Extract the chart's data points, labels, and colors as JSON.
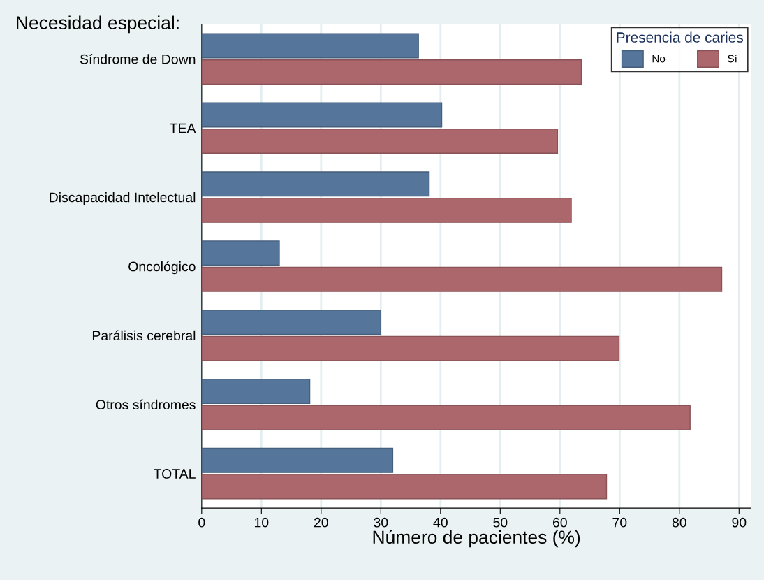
{
  "chart_data": {
    "type": "bar",
    "orientation": "horizontal",
    "ylabel": "Necesidad especial:",
    "xlabel": "Número de pacientes (%)",
    "legend_title": "Presencia de caries",
    "categories": [
      "Síndrome de Down",
      "TEA",
      "Discapacidad Intelectual",
      "Oncológico",
      "Parálisis cerebral",
      "Otros síndromes",
      "TOTAL"
    ],
    "series": [
      {
        "name": "No",
        "color": "#55759a",
        "values": [
          36.3,
          40.2,
          38.1,
          13.0,
          30.0,
          18.1,
          32.0
        ]
      },
      {
        "name": "Sí",
        "color": "#ab676b",
        "values": [
          63.6,
          59.6,
          61.9,
          87.1,
          69.9,
          81.8,
          67.8
        ]
      }
    ],
    "xlim": [
      0,
      92
    ],
    "xticks": [
      0,
      10,
      20,
      30,
      40,
      50,
      60,
      70,
      80,
      90
    ],
    "grid": "x",
    "legend": "top right"
  }
}
